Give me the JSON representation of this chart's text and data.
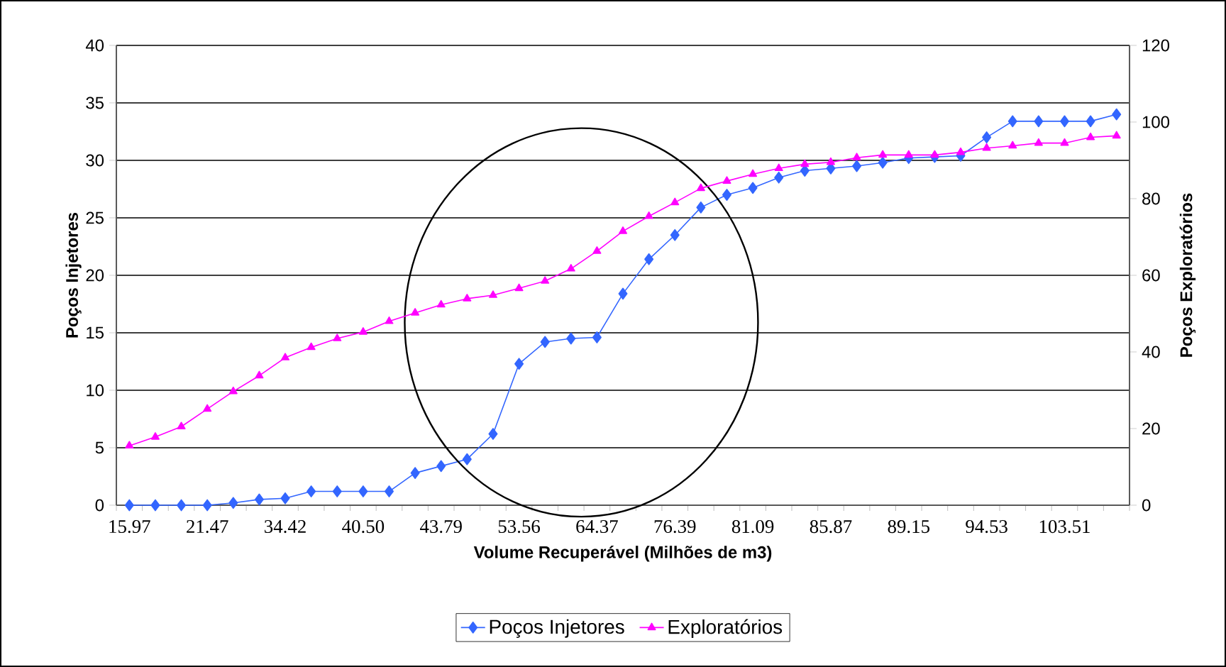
{
  "chart_data": {
    "type": "line",
    "xlabel": "Volume Recuperável (Milhões de m3)",
    "ylabel": "Poços Injetores",
    "y2label": "Poços Exploratórios",
    "categories": [
      "15.97",
      null,
      null,
      "21.47",
      null,
      null,
      "34.42",
      null,
      null,
      "40.50",
      null,
      null,
      "43.79",
      null,
      null,
      "53.56",
      null,
      null,
      "64.37",
      null,
      null,
      "76.39",
      null,
      null,
      "81.09",
      null,
      null,
      "85.87",
      null,
      null,
      "89.15",
      null,
      null,
      "94.53",
      null,
      null,
      "103.51",
      null,
      null
    ],
    "series": [
      {
        "name": "Poços Injetores",
        "color": "#3366ff",
        "marker": "diamond",
        "values": [
          0,
          0,
          0,
          0,
          0.2,
          0.5,
          0.6,
          1.2,
          1.2,
          1.2,
          1.2,
          2.8,
          3.4,
          4.0,
          6.2,
          12.3,
          14.2,
          14.5,
          14.6,
          18.4,
          21.4,
          23.5,
          25.9,
          27.0,
          27.6,
          28.5,
          29.1,
          29.3,
          29.5,
          29.8,
          30.2,
          30.3,
          30.4,
          32.0,
          33.4,
          33.4,
          33.4,
          33.4,
          34.0
        ]
      },
      {
        "name": "Exploratórios",
        "color": "#ff00ff",
        "marker": "triangle",
        "axis": "y2",
        "values": [
          15.5,
          17.8,
          20.5,
          25.1,
          29.7,
          33.8,
          38.5,
          41.2,
          43.5,
          45.2,
          48.0,
          50.2,
          52.3,
          53.9,
          54.8,
          56.6,
          58.5,
          61.7,
          66.3,
          71.5,
          75.4,
          79.0,
          82.7,
          84.6,
          86.4,
          87.9,
          89.0,
          89.5,
          90.7,
          91.4,
          91.4,
          91.4,
          92.1,
          93.2,
          93.8,
          94.5,
          94.5,
          96.0,
          96.4
        ]
      }
    ],
    "ylim": [
      0,
      40
    ],
    "yticks": [
      0,
      5,
      10,
      15,
      20,
      25,
      30,
      35,
      40
    ],
    "y2lim": [
      0,
      120
    ],
    "y2ticks": [
      0,
      20,
      40,
      60,
      80,
      100,
      120
    ],
    "grid": "y",
    "legend": "bottom",
    "line_style": "solid"
  }
}
